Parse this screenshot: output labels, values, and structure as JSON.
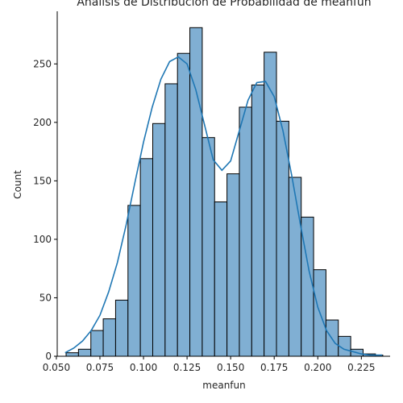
{
  "chart_data": {
    "type": "bar",
    "title": "Análisis de Distribución de Probabilidad de meanfun",
    "xlabel": "meanfun",
    "ylabel": "Count",
    "xlim": [
      0.0505,
      0.2415
    ],
    "ylim": [
      0,
      295
    ],
    "xticks": [
      0.05,
      0.075,
      0.1,
      0.125,
      0.15,
      0.175,
      0.2,
      0.225
    ],
    "xtick_labels": [
      "0.050",
      "0.075",
      "0.100",
      "0.125",
      "0.150",
      "0.175",
      "0.200",
      "0.225"
    ],
    "yticks": [
      0,
      50,
      100,
      150,
      200,
      250
    ],
    "ytick_labels": [
      "0",
      "50",
      "100",
      "150",
      "200",
      "250"
    ],
    "bins": [
      {
        "x0": 0.0556,
        "x1": 0.0627,
        "count": 3
      },
      {
        "x0": 0.0627,
        "x1": 0.0698,
        "count": 6
      },
      {
        "x0": 0.0698,
        "x1": 0.0769,
        "count": 22
      },
      {
        "x0": 0.0769,
        "x1": 0.084,
        "count": 32
      },
      {
        "x0": 0.084,
        "x1": 0.0911,
        "count": 48
      },
      {
        "x0": 0.0911,
        "x1": 0.0982,
        "count": 129
      },
      {
        "x0": 0.0982,
        "x1": 0.1053,
        "count": 169
      },
      {
        "x0": 0.1053,
        "x1": 0.1124,
        "count": 199
      },
      {
        "x0": 0.1124,
        "x1": 0.1195,
        "count": 233
      },
      {
        "x0": 0.1195,
        "x1": 0.1266,
        "count": 259
      },
      {
        "x0": 0.1266,
        "x1": 0.1337,
        "count": 281
      },
      {
        "x0": 0.1337,
        "x1": 0.1408,
        "count": 187
      },
      {
        "x0": 0.1408,
        "x1": 0.1479,
        "count": 132
      },
      {
        "x0": 0.1479,
        "x1": 0.155,
        "count": 156
      },
      {
        "x0": 0.155,
        "x1": 0.1621,
        "count": 213
      },
      {
        "x0": 0.1621,
        "x1": 0.1692,
        "count": 232
      },
      {
        "x0": 0.1692,
        "x1": 0.1763,
        "count": 260
      },
      {
        "x0": 0.1763,
        "x1": 0.1834,
        "count": 201
      },
      {
        "x0": 0.1834,
        "x1": 0.1905,
        "count": 153
      },
      {
        "x0": 0.1905,
        "x1": 0.1976,
        "count": 119
      },
      {
        "x0": 0.1976,
        "x1": 0.2047,
        "count": 74
      },
      {
        "x0": 0.2047,
        "x1": 0.2118,
        "count": 31
      },
      {
        "x0": 0.2118,
        "x1": 0.2189,
        "count": 17
      },
      {
        "x0": 0.2189,
        "x1": 0.226,
        "count": 6
      },
      {
        "x0": 0.226,
        "x1": 0.2331,
        "count": 2
      },
      {
        "x0": 0.2331,
        "x1": 0.2373,
        "count": 1
      }
    ],
    "kde": {
      "x": [
        0.055,
        0.06,
        0.065,
        0.07,
        0.075,
        0.08,
        0.085,
        0.09,
        0.095,
        0.1,
        0.105,
        0.11,
        0.115,
        0.12,
        0.125,
        0.13,
        0.135,
        0.14,
        0.145,
        0.15,
        0.155,
        0.16,
        0.165,
        0.17,
        0.175,
        0.18,
        0.185,
        0.19,
        0.195,
        0.2,
        0.205,
        0.21,
        0.215,
        0.22,
        0.225,
        0.23,
        0.237
      ],
      "y": [
        3,
        7,
        13,
        22,
        35,
        55,
        80,
        112,
        148,
        183,
        213,
        237,
        252,
        256,
        250,
        228,
        198,
        168,
        159,
        167,
        193,
        219,
        234,
        235,
        222,
        193,
        155,
        113,
        73,
        42,
        22,
        11,
        6,
        4,
        2,
        1,
        1
      ]
    },
    "colors": {
      "bar_fill": "#80afd3",
      "bar_edge": "#000000",
      "kde_line": "#1f77b4",
      "axis": "#000000",
      "text": "#262626"
    },
    "grid": false,
    "legend": "none"
  }
}
